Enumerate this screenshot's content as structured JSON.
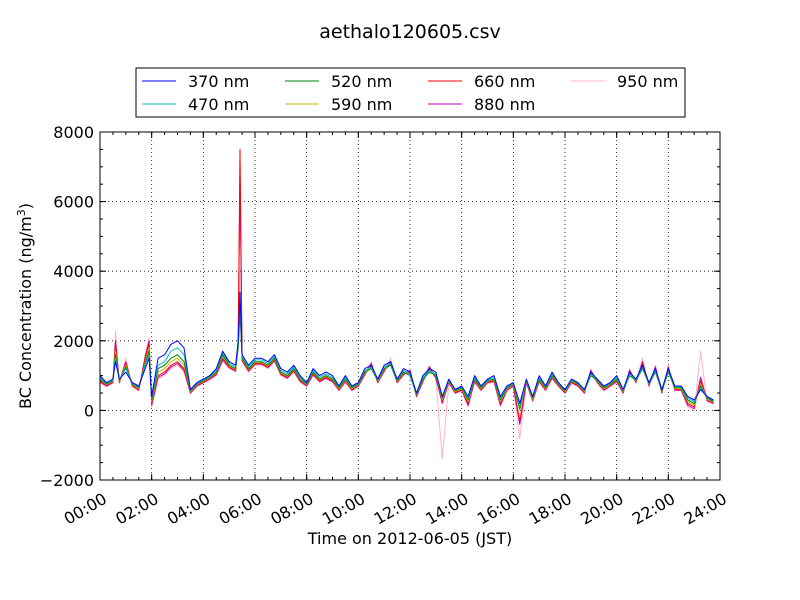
{
  "chart_data": {
    "type": "line",
    "title": "aethalo120605.csv",
    "xlabel": "Time on 2012-06-05 (JST)",
    "ylabel": "BC Concentration (ng/m",
    "ylabel_sup": "3",
    "ylabel_close": ")",
    "xlim": [
      0,
      24
    ],
    "ylim": [
      -2000,
      8000
    ],
    "x_ticks": [
      0,
      2,
      4,
      6,
      8,
      10,
      12,
      14,
      16,
      18,
      20,
      22,
      24
    ],
    "x_tick_labels": [
      "00:00",
      "02:00",
      "04:00",
      "06:00",
      "08:00",
      "10:00",
      "12:00",
      "14:00",
      "16:00",
      "18:00",
      "20:00",
      "22:00",
      "24:00"
    ],
    "y_ticks": [
      -2000,
      0,
      2000,
      4000,
      6000,
      8000
    ],
    "y_tick_labels": [
      "−2000",
      "0",
      "2000",
      "4000",
      "6000",
      "8000"
    ],
    "grid": true,
    "legend_position": "top",
    "x": [
      0.0,
      0.25,
      0.5,
      0.6,
      0.75,
      1.0,
      1.25,
      1.5,
      1.75,
      1.9,
      2.0,
      2.25,
      2.5,
      2.75,
      3.0,
      3.25,
      3.5,
      3.75,
      4.0,
      4.25,
      4.5,
      4.75,
      5.0,
      5.25,
      5.35,
      5.42,
      5.5,
      5.75,
      6.0,
      6.25,
      6.5,
      6.75,
      7.0,
      7.25,
      7.5,
      7.75,
      8.0,
      8.25,
      8.5,
      8.75,
      9.0,
      9.25,
      9.5,
      9.75,
      10.0,
      10.25,
      10.5,
      10.75,
      11.0,
      11.25,
      11.5,
      11.75,
      12.0,
      12.25,
      12.5,
      12.75,
      13.0,
      13.25,
      13.5,
      13.75,
      14.0,
      14.25,
      14.5,
      14.75,
      15.0,
      15.25,
      15.5,
      15.75,
      16.0,
      16.25,
      16.5,
      16.75,
      17.0,
      17.25,
      17.5,
      17.75,
      18.0,
      18.25,
      18.5,
      18.75,
      19.0,
      19.25,
      19.5,
      19.75,
      20.0,
      20.25,
      20.5,
      20.75,
      21.0,
      21.25,
      21.5,
      21.75,
      22.0,
      22.25,
      22.5,
      22.75,
      23.0,
      23.25,
      23.5,
      23.75
    ],
    "series": [
      {
        "name": "370 nm",
        "color": "#0000ff",
        "values": [
          1000,
          800,
          900,
          1400,
          900,
          1100,
          800,
          700,
          1200,
          1500,
          400,
          1500,
          1600,
          1900,
          2000,
          1800,
          600,
          800,
          900,
          1000,
          1200,
          1700,
          1400,
          1300,
          2000,
          3400,
          1600,
          1300,
          1500,
          1500,
          1400,
          1600,
          1200,
          1100,
          1300,
          1000,
          800,
          1200,
          1000,
          1100,
          1000,
          700,
          1000,
          700,
          800,
          1200,
          1300,
          900,
          1300,
          1400,
          900,
          1200,
          1100,
          500,
          1000,
          1200,
          1100,
          400,
          900,
          600,
          700,
          400,
          1000,
          700,
          900,
          1000,
          400,
          700,
          800,
          200,
          900,
          400,
          1000,
          700,
          1100,
          800,
          600,
          900,
          800,
          600,
          1100,
          900,
          700,
          800,
          1000,
          600,
          1100,
          900,
          1300,
          800,
          1200,
          600,
          1200,
          700,
          700,
          400,
          300,
          600,
          400,
          300
        ]
      },
      {
        "name": "470 nm",
        "color": "#00bfbf",
        "values": [
          950,
          780,
          880,
          1500,
          880,
          1200,
          780,
          680,
          1300,
          1600,
          350,
          1300,
          1400,
          1700,
          1800,
          1600,
          580,
          780,
          880,
          980,
          1150,
          1650,
          1350,
          1250,
          1900,
          3000,
          1550,
          1250,
          1450,
          1450,
          1350,
          1550,
          1150,
          1050,
          1250,
          950,
          780,
          1150,
          950,
          1050,
          950,
          680,
          950,
          680,
          780,
          1150,
          1250,
          880,
          1250,
          1350,
          880,
          1150,
          1050,
          480,
          950,
          1150,
          1050,
          380,
          880,
          580,
          680,
          350,
          950,
          680,
          880,
          950,
          350,
          680,
          780,
          100,
          880,
          380,
          950,
          680,
          1050,
          780,
          580,
          880,
          780,
          580,
          1050,
          880,
          680,
          780,
          950,
          580,
          1050,
          880,
          1250,
          780,
          1150,
          580,
          1150,
          680,
          680,
          350,
          250,
          650,
          380,
          280
        ]
      },
      {
        "name": "520 nm",
        "color": "#008000",
        "values": [
          900,
          760,
          860,
          1600,
          860,
          1250,
          760,
          650,
          1350,
          1700,
          300,
          1200,
          1300,
          1500,
          1600,
          1400,
          560,
          760,
          860,
          960,
          1100,
          1600,
          1300,
          1200,
          1800,
          2800,
          1500,
          1200,
          1400,
          1400,
          1300,
          1500,
          1100,
          1000,
          1200,
          900,
          760,
          1100,
          900,
          1000,
          900,
          650,
          900,
          650,
          760,
          1100,
          1200,
          860,
          1200,
          1300,
          860,
          1100,
          1000,
          460,
          900,
          1100,
          1000,
          350,
          860,
          560,
          650,
          300,
          900,
          650,
          860,
          900,
          300,
          650,
          760,
          50,
          860,
          350,
          900,
          650,
          1000,
          760,
          560,
          860,
          760,
          560,
          1000,
          860,
          650,
          760,
          900,
          560,
          1000,
          860,
          1200,
          760,
          1100,
          560,
          1100,
          650,
          650,
          300,
          200,
          700,
          350,
          260
        ]
      },
      {
        "name": "590 nm",
        "color": "#bfbf00",
        "values": [
          880,
          740,
          840,
          1700,
          840,
          1300,
          740,
          620,
          1400,
          1800,
          250,
          1100,
          1200,
          1400,
          1500,
          1300,
          540,
          740,
          840,
          940,
          1080,
          1550,
          1280,
          1180,
          1850,
          3200,
          1480,
          1180,
          1380,
          1380,
          1280,
          1480,
          1080,
          980,
          1180,
          880,
          740,
          1080,
          880,
          980,
          880,
          620,
          880,
          620,
          740,
          1080,
          1250,
          840,
          1180,
          1300,
          840,
          1080,
          1050,
          440,
          880,
          1150,
          1000,
          300,
          840,
          540,
          620,
          250,
          880,
          620,
          840,
          880,
          250,
          620,
          740,
          0,
          840,
          320,
          880,
          620,
          980,
          740,
          540,
          840,
          740,
          540,
          1050,
          840,
          620,
          740,
          880,
          540,
          1050,
          840,
          1250,
          740,
          1150,
          540,
          1150,
          620,
          620,
          250,
          150,
          750,
          320,
          240
        ]
      },
      {
        "name": "660 nm",
        "color": "#ff0000",
        "values": [
          850,
          720,
          820,
          1900,
          820,
          1350,
          720,
          600,
          1500,
          1900,
          200,
          1000,
          1100,
          1300,
          1400,
          1200,
          520,
          720,
          820,
          920,
          1050,
          1500,
          1250,
          1150,
          1900,
          7500,
          1450,
          1150,
          1350,
          1350,
          1250,
          1450,
          1050,
          950,
          1150,
          850,
          720,
          1050,
          850,
          950,
          850,
          600,
          850,
          600,
          720,
          1050,
          1300,
          820,
          1150,
          1350,
          820,
          1050,
          1100,
          420,
          850,
          1200,
          950,
          250,
          820,
          520,
          600,
          200,
          850,
          600,
          820,
          850,
          200,
          600,
          720,
          -300,
          820,
          300,
          850,
          600,
          950,
          720,
          520,
          820,
          720,
          520,
          1100,
          820,
          600,
          720,
          850,
          520,
          1100,
          820,
          1350,
          720,
          1200,
          520,
          1200,
          600,
          600,
          200,
          100,
          850,
          300,
          220
        ]
      },
      {
        "name": "880 nm",
        "color": "#bf00bf",
        "values": [
          820,
          700,
          800,
          2000,
          800,
          1400,
          700,
          580,
          1550,
          2000,
          150,
          950,
          1050,
          1250,
          1350,
          1150,
          500,
          700,
          800,
          900,
          1030,
          1450,
          1230,
          1130,
          1950,
          6800,
          1430,
          1130,
          1330,
          1330,
          1230,
          1430,
          1030,
          930,
          1130,
          830,
          700,
          1030,
          830,
          930,
          830,
          580,
          830,
          580,
          700,
          1030,
          1350,
          800,
          1130,
          1400,
          800,
          1030,
          1150,
          400,
          830,
          1250,
          930,
          200,
          800,
          500,
          580,
          150,
          830,
          580,
          800,
          830,
          150,
          580,
          700,
          -400,
          800,
          280,
          830,
          580,
          930,
          700,
          500,
          800,
          700,
          500,
          1150,
          800,
          580,
          700,
          830,
          500,
          1150,
          800,
          1400,
          700,
          1250,
          500,
          1250,
          580,
          580,
          150,
          50,
          950,
          280,
          200
        ]
      },
      {
        "name": "950 nm",
        "color": "#ffb6c1",
        "values": [
          800,
          680,
          780,
          2300,
          780,
          1500,
          680,
          560,
          1600,
          2100,
          100,
          900,
          1000,
          1200,
          1300,
          1100,
          480,
          680,
          780,
          880,
          1000,
          1400,
          1200,
          1100,
          2000,
          7200,
          1400,
          1100,
          1300,
          1300,
          1200,
          1400,
          1000,
          900,
          1100,
          800,
          680,
          1000,
          800,
          900,
          800,
          560,
          800,
          560,
          680,
          1000,
          1400,
          780,
          1100,
          1500,
          780,
          1000,
          1200,
          380,
          800,
          1300,
          900,
          -1400,
          780,
          480,
          560,
          100,
          800,
          560,
          780,
          800,
          100,
          560,
          680,
          -800,
          780,
          260,
          800,
          560,
          900,
          680,
          480,
          780,
          680,
          480,
          1200,
          780,
          560,
          680,
          800,
          480,
          1200,
          780,
          1500,
          680,
          1300,
          480,
          1300,
          560,
          560,
          100,
          0,
          1700,
          260,
          180
        ]
      }
    ]
  }
}
